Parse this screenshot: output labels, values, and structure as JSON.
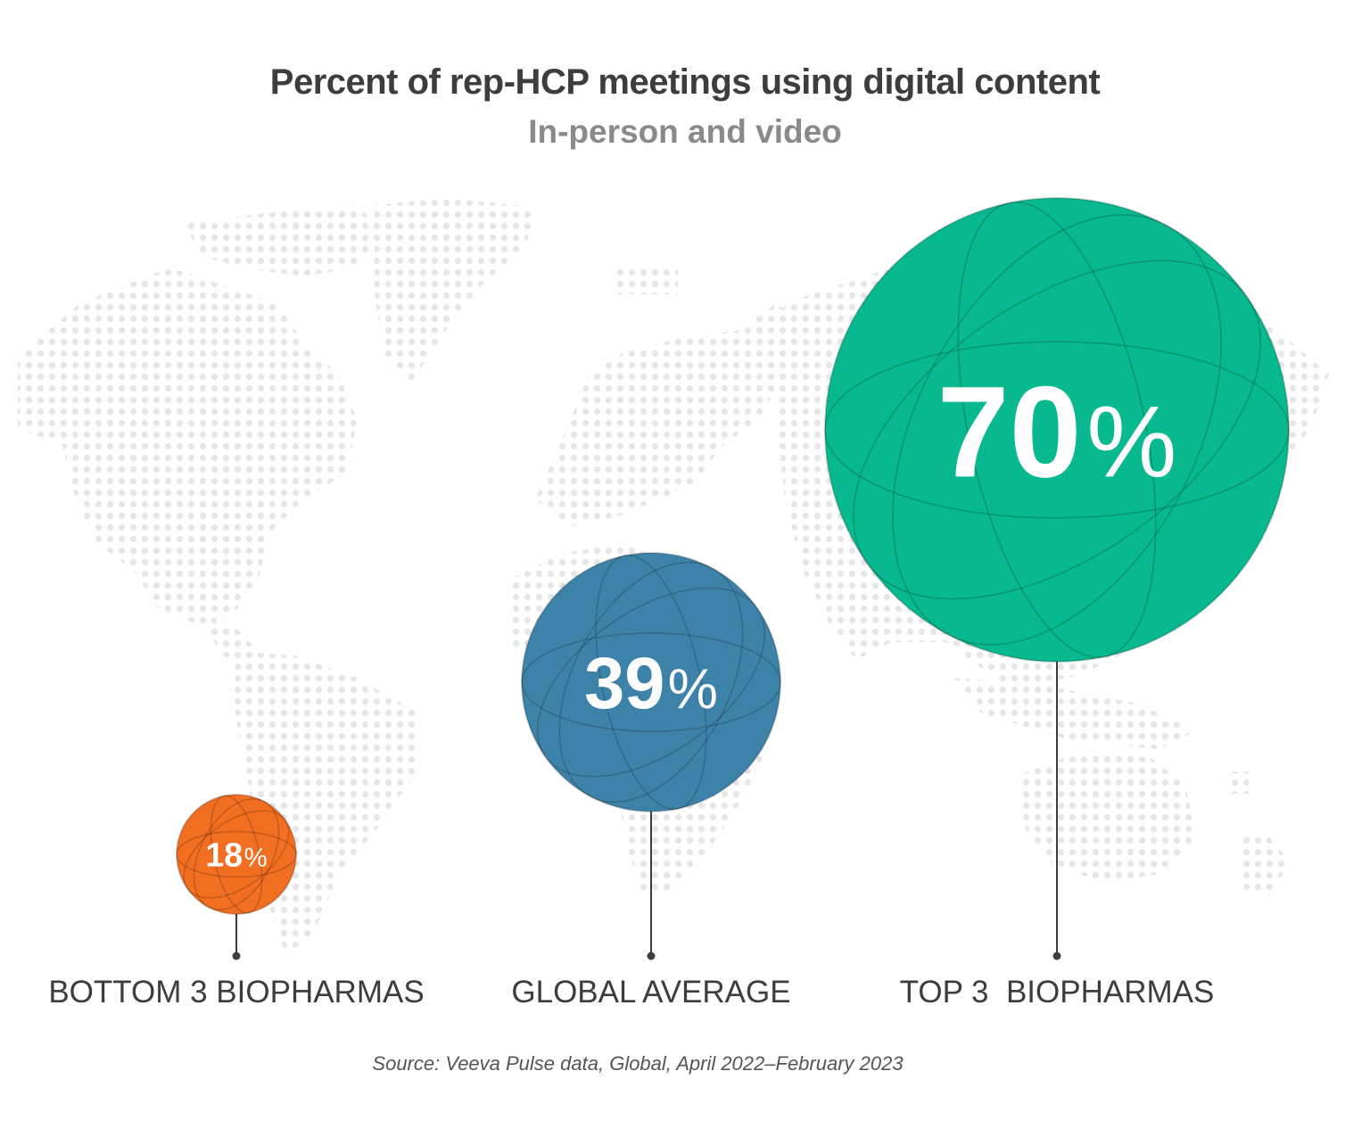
{
  "title": "Percent of rep-HCP meetings using digital content",
  "subtitle": "In-person and video",
  "source": "Source: Veeva Pulse data, Global, April 2022–February 2023",
  "chart_data": {
    "type": "bubble",
    "title": "Percent of rep-HCP meetings using digital content",
    "subtitle": "In-person and video",
    "unit": "%",
    "categories": [
      "BOTTOM 3 BIOPHARMAS",
      "GLOBAL AVERAGE",
      "TOP 3  BIOPHARMAS"
    ],
    "values": [
      18,
      39,
      70
    ],
    "value_labels": [
      "18",
      "39",
      "70"
    ],
    "colors": [
      "#f26a1b",
      "#377fa6",
      "#00b68a"
    ],
    "background": "world dot map"
  }
}
